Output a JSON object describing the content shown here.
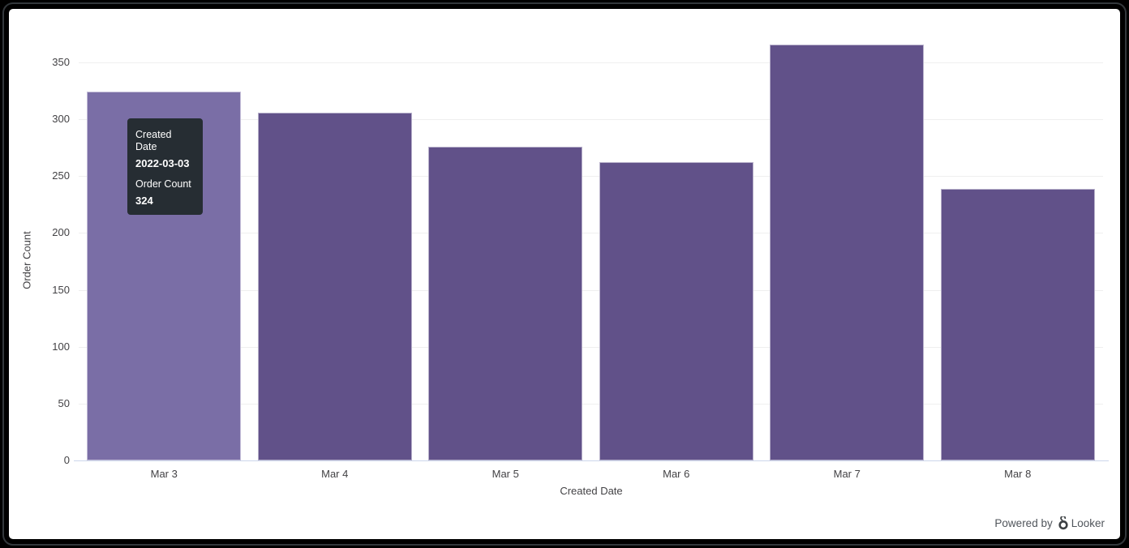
{
  "chart_data": {
    "type": "bar",
    "title": "",
    "categories": [
      "Mar 3",
      "Mar 4",
      "Mar 5",
      "Mar 6",
      "Mar 7",
      "Mar 8"
    ],
    "values": [
      324,
      306,
      276,
      262,
      366,
      239
    ],
    "series_name": "Order Count",
    "xlabel": "Created Date",
    "ylabel": "Order Count",
    "ylim": [
      0,
      350
    ],
    "ytick_interval": 50,
    "yticks": [
      "0",
      "50",
      "100",
      "150",
      "200",
      "250",
      "300",
      "350"
    ],
    "grid": true,
    "legend_position": "none",
    "bar_color": "#615189",
    "hover_bar_color": "#7A6EA6",
    "hovered_index": 0
  },
  "tooltip": {
    "dimension_label": "Created Date",
    "dimension_value": "2022-03-03",
    "measure_label": "Order Count",
    "measure_value": "324",
    "bg_color": "#262D33"
  },
  "axes": {
    "x_title": "Created Date",
    "y_title": "Order Count"
  },
  "footer": {
    "powered_by_label": "Powered by",
    "brand_label": "Looker"
  },
  "colors": {
    "grid_line": "#efefef",
    "axis_line": "#ccd6eb",
    "tick_text": "#434245",
    "card_bg": "#ffffff",
    "frame_bg": "#000000"
  }
}
